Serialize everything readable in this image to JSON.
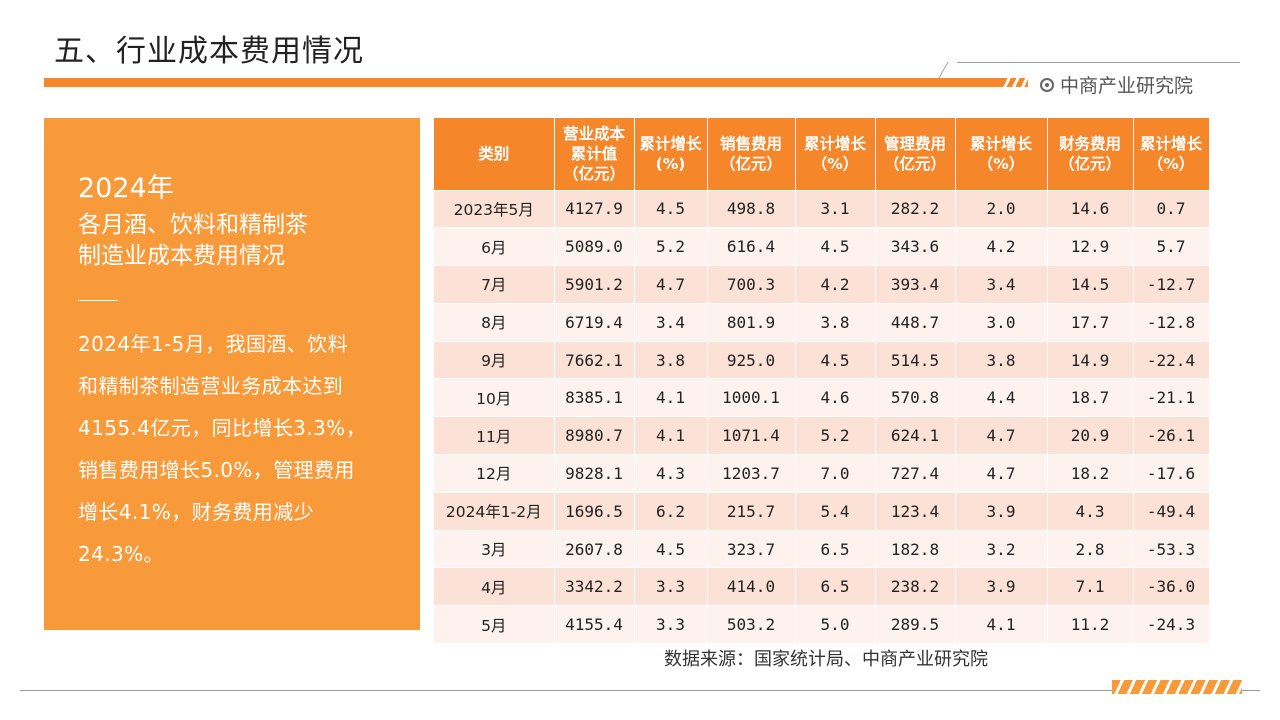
{
  "header": {
    "title": "五、行业成本费用情况",
    "brand": "中商产业研究院"
  },
  "panel": {
    "year": "2024年",
    "subtitle_line1": "各月酒、饮料和精制茶",
    "subtitle_line2": "制造业成本费用情况",
    "paragraph_lines": [
      "2024年1-5月，我国酒、饮料",
      "和精制茶制造营业务成本达到",
      "4155.4亿元，同比增长3.3%，",
      "销售费用增长5.0%，管理费用",
      "增长4.1%，财务费用减少",
      "24.3%。"
    ]
  },
  "table": {
    "headers": [
      "类别",
      "营业成本累计值（亿元）",
      "累计增长(%)",
      "销售费用（亿元）",
      "累计增长（%）",
      "管理费用（亿元）",
      "累计增长（%）",
      "财务费用（亿元）",
      "累计增长（%）"
    ],
    "rows": [
      [
        "2023年5月",
        "4127.9",
        "4.5",
        "498.8",
        "3.1",
        "282.2",
        "2.0",
        "14.6",
        "0.7"
      ],
      [
        "6月",
        "5089.0",
        "5.2",
        "616.4",
        "4.5",
        "343.6",
        "4.2",
        "12.9",
        "5.7"
      ],
      [
        "7月",
        "5901.2",
        "4.7",
        "700.3",
        "4.2",
        "393.4",
        "3.4",
        "14.5",
        "-12.7"
      ],
      [
        "8月",
        "6719.4",
        "3.4",
        "801.9",
        "3.8",
        "448.7",
        "3.0",
        "17.7",
        "-12.8"
      ],
      [
        "9月",
        "7662.1",
        "3.8",
        "925.0",
        "4.5",
        "514.5",
        "3.8",
        "14.9",
        "-22.4"
      ],
      [
        "10月",
        "8385.1",
        "4.1",
        "1000.1",
        "4.6",
        "570.8",
        "4.4",
        "18.7",
        "-21.1"
      ],
      [
        "11月",
        "8980.7",
        "4.1",
        "1071.4",
        "5.2",
        "624.1",
        "4.7",
        "20.9",
        "-26.1"
      ],
      [
        "12月",
        "9828.1",
        "4.3",
        "1203.7",
        "7.0",
        "727.4",
        "4.7",
        "18.2",
        "-17.6"
      ],
      [
        "2024年1-2月",
        "1696.5",
        "6.2",
        "215.7",
        "5.4",
        "123.4",
        "3.9",
        "4.3",
        "-49.4"
      ],
      [
        "3月",
        "2607.8",
        "4.5",
        "323.7",
        "6.5",
        "182.8",
        "3.2",
        "2.8",
        "-53.3"
      ],
      [
        "4月",
        "3342.2",
        "3.3",
        "414.0",
        "6.5",
        "238.2",
        "3.9",
        "7.1",
        "-36.0"
      ],
      [
        "5月",
        "4155.4",
        "3.3",
        "503.2",
        "5.0",
        "289.5",
        "4.1",
        "11.2",
        "-24.3"
      ]
    ]
  },
  "source": "数据来源：国家统计局、中商产业研究院",
  "colors": {
    "accent": "#f5862a",
    "panel": "#f99a3a",
    "row_odd": "#fbe1d6",
    "row_even": "#fdf2ed"
  }
}
